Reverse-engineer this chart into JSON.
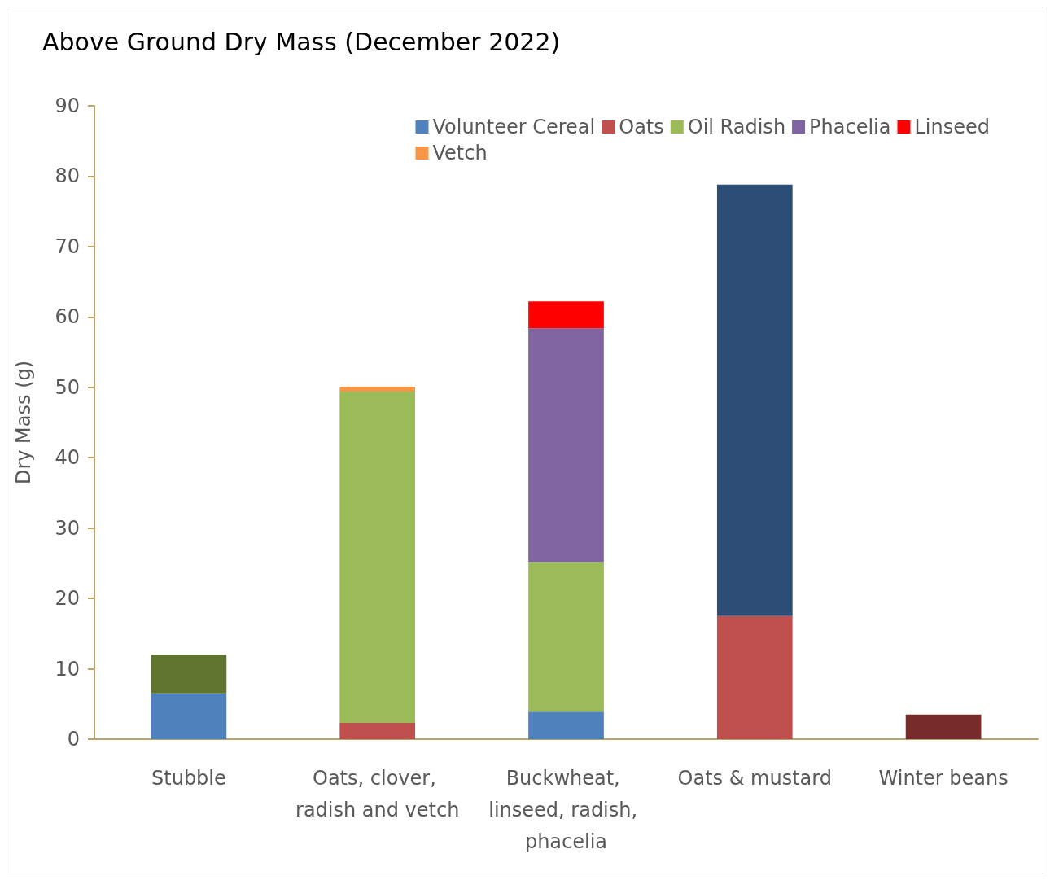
{
  "chart_data": {
    "type": "bar",
    "stacked": true,
    "title": "Above Ground Dry Mass (December 2022)",
    "ylabel": "Dry Mass (g)",
    "categories": [
      "Stubble",
      "Oats, clover, radish and vetch",
      "Buckwheat, linseed, radish, phacelia",
      "Oats & mustard",
      "Winter beans"
    ],
    "series": [
      {
        "name": "Volunteer Cereal",
        "color": "#4f81bd",
        "values": [
          6.5,
          null,
          3.9,
          null,
          null
        ]
      },
      {
        "name": "Oats",
        "color": "#c0504d",
        "values": [
          null,
          2.3,
          null,
          17.5,
          null
        ]
      },
      {
        "name": "Oil Radish",
        "color": "#9bbb59",
        "values": [
          null,
          47.1,
          21.3,
          null,
          null
        ]
      },
      {
        "name": "Phacelia",
        "color": "#8064a2",
        "values": [
          null,
          null,
          33.2,
          null,
          null
        ]
      },
      {
        "name": "Linseed",
        "color": "#ff0000",
        "values": [
          null,
          null,
          3.8,
          null,
          null
        ]
      },
      {
        "name": "Vetch",
        "color": "#f79646",
        "values": [
          null,
          0.7,
          null,
          null,
          null
        ]
      },
      {
        "color": "#5f7530",
        "values": [
          5.5,
          null,
          null,
          null,
          null
        ]
      },
      {
        "color": "#2c4d75",
        "values": [
          null,
          null,
          null,
          61.3,
          null
        ]
      },
      {
        "color": "#772c2a",
        "values": [
          null,
          null,
          null,
          null,
          3.5
        ]
      }
    ],
    "ylim": [
      0,
      90
    ],
    "yticks": [
      0,
      10,
      20,
      30,
      40,
      50,
      60,
      70,
      80,
      90
    ],
    "grid": false,
    "legend": "top right"
  }
}
